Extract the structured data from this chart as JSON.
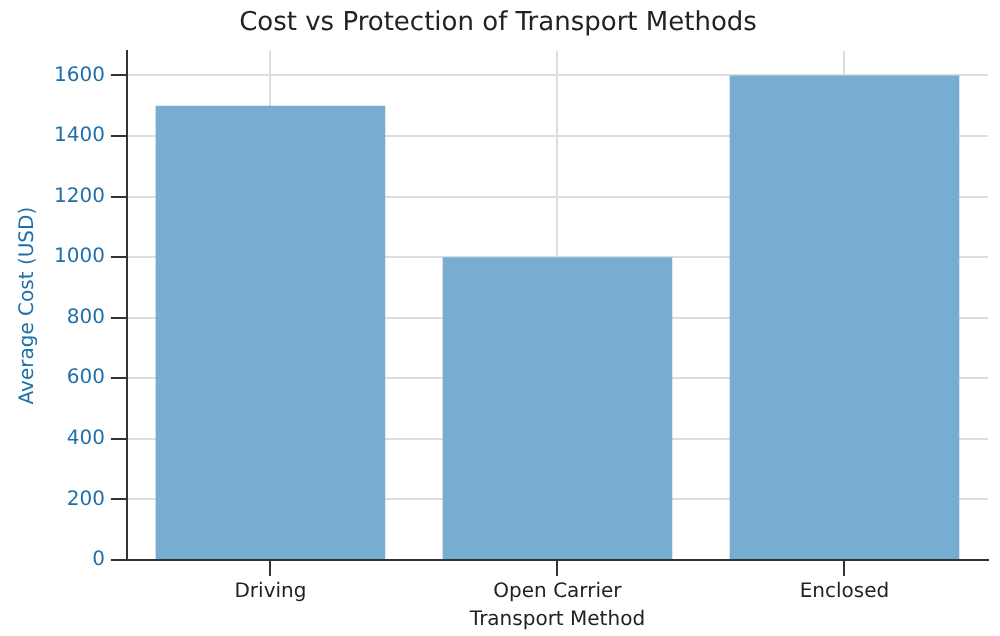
{
  "chart_data": {
    "type": "bar",
    "title": "Cost vs Protection of Transport Methods",
    "xlabel": "Transport Method",
    "ylabel": "Average Cost (USD)",
    "categories": [
      "Driving",
      "Open Carrier",
      "Enclosed"
    ],
    "values": [
      1500,
      1000,
      1600
    ],
    "color": "#78add2",
    "ylim": [
      0,
      1680
    ],
    "yticks": [
      0,
      200,
      400,
      600,
      800,
      1000,
      1200,
      1400,
      1600
    ],
    "grid": true
  }
}
